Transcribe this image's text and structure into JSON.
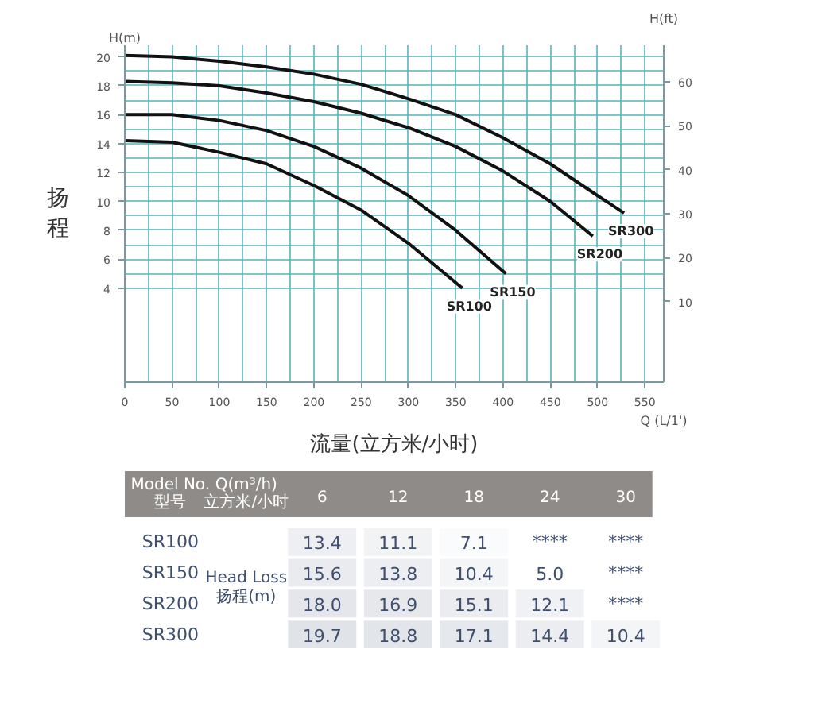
{
  "chart_data": [
    {
      "type": "line",
      "xlabel": "Q (L/1')",
      "ylabel": "H(m)",
      "y2label": "H(ft)",
      "annotations": [
        "扬程",
        "流量(立方米/小时)"
      ],
      "xlim": [
        0,
        570
      ],
      "xticks": [
        0,
        50,
        100,
        150,
        200,
        250,
        300,
        350,
        400,
        450,
        500,
        550
      ],
      "ylim": [
        -2.5,
        20.8
      ],
      "yticks": [
        4,
        6,
        8,
        10,
        12,
        14,
        16,
        18,
        20
      ],
      "y2lim": [
        -8.2,
        68.2
      ],
      "y2ticks": [
        10,
        20,
        30,
        40,
        50,
        60
      ],
      "grid": true,
      "series": [
        {
          "name": "SR100",
          "color": "#111111",
          "x": [
            0,
            50,
            100,
            150,
            200,
            250,
            300,
            357
          ],
          "values": [
            14.2,
            14.1,
            13.4,
            12.6,
            11.1,
            9.4,
            7.1,
            4.0
          ]
        },
        {
          "name": "SR150",
          "color": "#111111",
          "x": [
            0,
            50,
            100,
            150,
            200,
            250,
            300,
            350,
            403
          ],
          "values": [
            16.0,
            16.0,
            15.6,
            14.9,
            13.8,
            12.3,
            10.4,
            8.0,
            5.0
          ]
        },
        {
          "name": "SR200",
          "color": "#111111",
          "x": [
            0,
            50,
            100,
            150,
            200,
            250,
            300,
            350,
            400,
            450,
            495
          ],
          "values": [
            18.3,
            18.2,
            18.0,
            17.5,
            16.9,
            16.1,
            15.1,
            13.8,
            12.1,
            10.0,
            7.6
          ]
        },
        {
          "name": "SR300",
          "color": "#111111",
          "x": [
            0,
            50,
            100,
            150,
            200,
            250,
            300,
            350,
            400,
            450,
            500,
            528
          ],
          "values": [
            20.1,
            20.0,
            19.7,
            19.3,
            18.8,
            18.1,
            17.1,
            16.0,
            14.4,
            12.6,
            10.4,
            9.2
          ]
        }
      ]
    },
    {
      "type": "heatmap",
      "categories": [
        "6",
        "12",
        "18",
        "24",
        "30"
      ],
      "y_categories": [
        "SR100",
        "SR150",
        "SR200",
        "SR300"
      ],
      "annotations": [
        "Model No.\n型号",
        "Q(m³/h)\n立方米/小时",
        "Head Loss\n扬程(m)"
      ],
      "cells": [
        [
          13.4,
          11.1,
          7.1,
          null,
          null
        ],
        [
          15.6,
          13.8,
          10.4,
          5.0,
          null
        ],
        [
          18.0,
          16.9,
          15.1,
          12.1,
          null
        ],
        [
          19.7,
          18.8,
          17.1,
          14.4,
          10.4
        ]
      ],
      "cell_labels": [
        [
          "13.4",
          "11.1",
          "7.1",
          "****",
          "****"
        ],
        [
          "15.6",
          "13.8",
          "10.4",
          "5.0",
          "****"
        ],
        [
          "18.0",
          "16.9",
          "15.1",
          "12.1",
          "****"
        ],
        [
          "19.7",
          "18.8",
          "17.1",
          "14.4",
          "10.4"
        ]
      ]
    }
  ]
}
